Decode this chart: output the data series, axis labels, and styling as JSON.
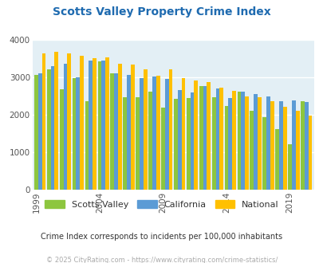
{
  "title": "Scotts Valley Property Crime Index",
  "subtitle": "Crime Index corresponds to incidents per 100,000 inhabitants",
  "footer": "© 2025 CityRating.com - https://www.cityrating.com/crime-statistics/",
  "years": [
    1999,
    2000,
    2001,
    2002,
    2003,
    2004,
    2005,
    2006,
    2007,
    2008,
    2009,
    2010,
    2011,
    2012,
    2013,
    2014,
    2015,
    2016,
    2017,
    2018,
    2019,
    2020
  ],
  "scotts_valley": [
    3050,
    3200,
    2680,
    2970,
    2360,
    3420,
    3100,
    2460,
    2460,
    2600,
    2180,
    2420,
    2440,
    2760,
    2450,
    2230,
    2600,
    2100,
    1930,
    1600,
    1200,
    2360
  ],
  "california": [
    3100,
    3290,
    3360,
    2990,
    3430,
    3430,
    3100,
    3060,
    2960,
    3020,
    2950,
    2640,
    2580,
    2760,
    2690,
    2440,
    2600,
    2540,
    2480,
    2360,
    2370,
    2340
  ],
  "national": [
    3620,
    3670,
    3620,
    3570,
    3490,
    3520,
    3360,
    3330,
    3200,
    3040,
    3210,
    2970,
    2900,
    2860,
    2720,
    2620,
    2490,
    2460,
    2360,
    2200,
    2090,
    1960
  ],
  "bar_colors": {
    "scotts_valley": "#8dc63f",
    "california": "#5b9bd5",
    "national": "#ffc000"
  },
  "plot_bg": "#e3eff5",
  "fig_bg": "#ffffff",
  "title_color": "#1f6bb0",
  "subtitle_color": "#333333",
  "footer_color": "#aaaaaa",
  "ylim": [
    0,
    4000
  ],
  "yticks": [
    0,
    1000,
    2000,
    3000,
    4000
  ],
  "legend_labels": [
    "Scotts Valley",
    "California",
    "National"
  ],
  "tick_years": [
    1999,
    2004,
    2009,
    2014,
    2019
  ]
}
